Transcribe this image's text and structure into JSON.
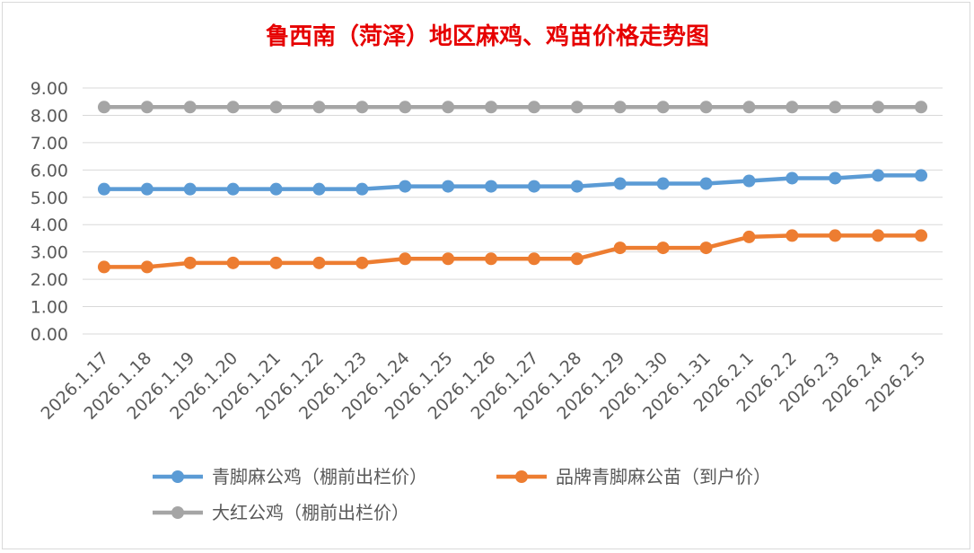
{
  "chart_data": {
    "type": "line",
    "title": "鲁西南（菏泽）地区麻鸡、鸡苗价格走势图",
    "xlabel": "",
    "ylabel": "",
    "ylim": [
      0,
      9
    ],
    "yticks": [
      "0.00",
      "1.00",
      "2.00",
      "3.00",
      "4.00",
      "5.00",
      "6.00",
      "7.00",
      "8.00",
      "9.00"
    ],
    "grid": true,
    "legend_position": "bottom",
    "categories": [
      "2026.1.17",
      "2026.1.18",
      "2026.1.19",
      "2026.1.20",
      "2026.1.21",
      "2026.1.22",
      "2026.1.23",
      "2026.1.24",
      "2026.1.25",
      "2026.1.26",
      "2026.1.27",
      "2026.1.28",
      "2026.1.29",
      "2026.1.30",
      "2026.1.31",
      "2026.2.1",
      "2026.2.2",
      "2026.2.3",
      "2026.2.4",
      "2026.2.5"
    ],
    "series": [
      {
        "name": "青脚麻公鸡（棚前出栏价）",
        "color": "#5b9bd5",
        "values": [
          5.3,
          5.3,
          5.3,
          5.3,
          5.3,
          5.3,
          5.3,
          5.4,
          5.4,
          5.4,
          5.4,
          5.4,
          5.5,
          5.5,
          5.5,
          5.6,
          5.7,
          5.7,
          5.8,
          5.8
        ]
      },
      {
        "name": "品牌青脚麻公苗（到户价）",
        "color": "#ed7d31",
        "values": [
          2.45,
          2.45,
          2.6,
          2.6,
          2.6,
          2.6,
          2.6,
          2.75,
          2.75,
          2.75,
          2.75,
          2.75,
          3.15,
          3.15,
          3.15,
          3.55,
          3.6,
          3.6,
          3.6,
          3.6
        ]
      },
      {
        "name": "大红公鸡（棚前出栏价）",
        "color": "#a5a5a5",
        "values": [
          8.3,
          8.3,
          8.3,
          8.3,
          8.3,
          8.3,
          8.3,
          8.3,
          8.3,
          8.3,
          8.3,
          8.3,
          8.3,
          8.3,
          8.3,
          8.3,
          8.3,
          8.3,
          8.3,
          8.3
        ]
      }
    ]
  }
}
